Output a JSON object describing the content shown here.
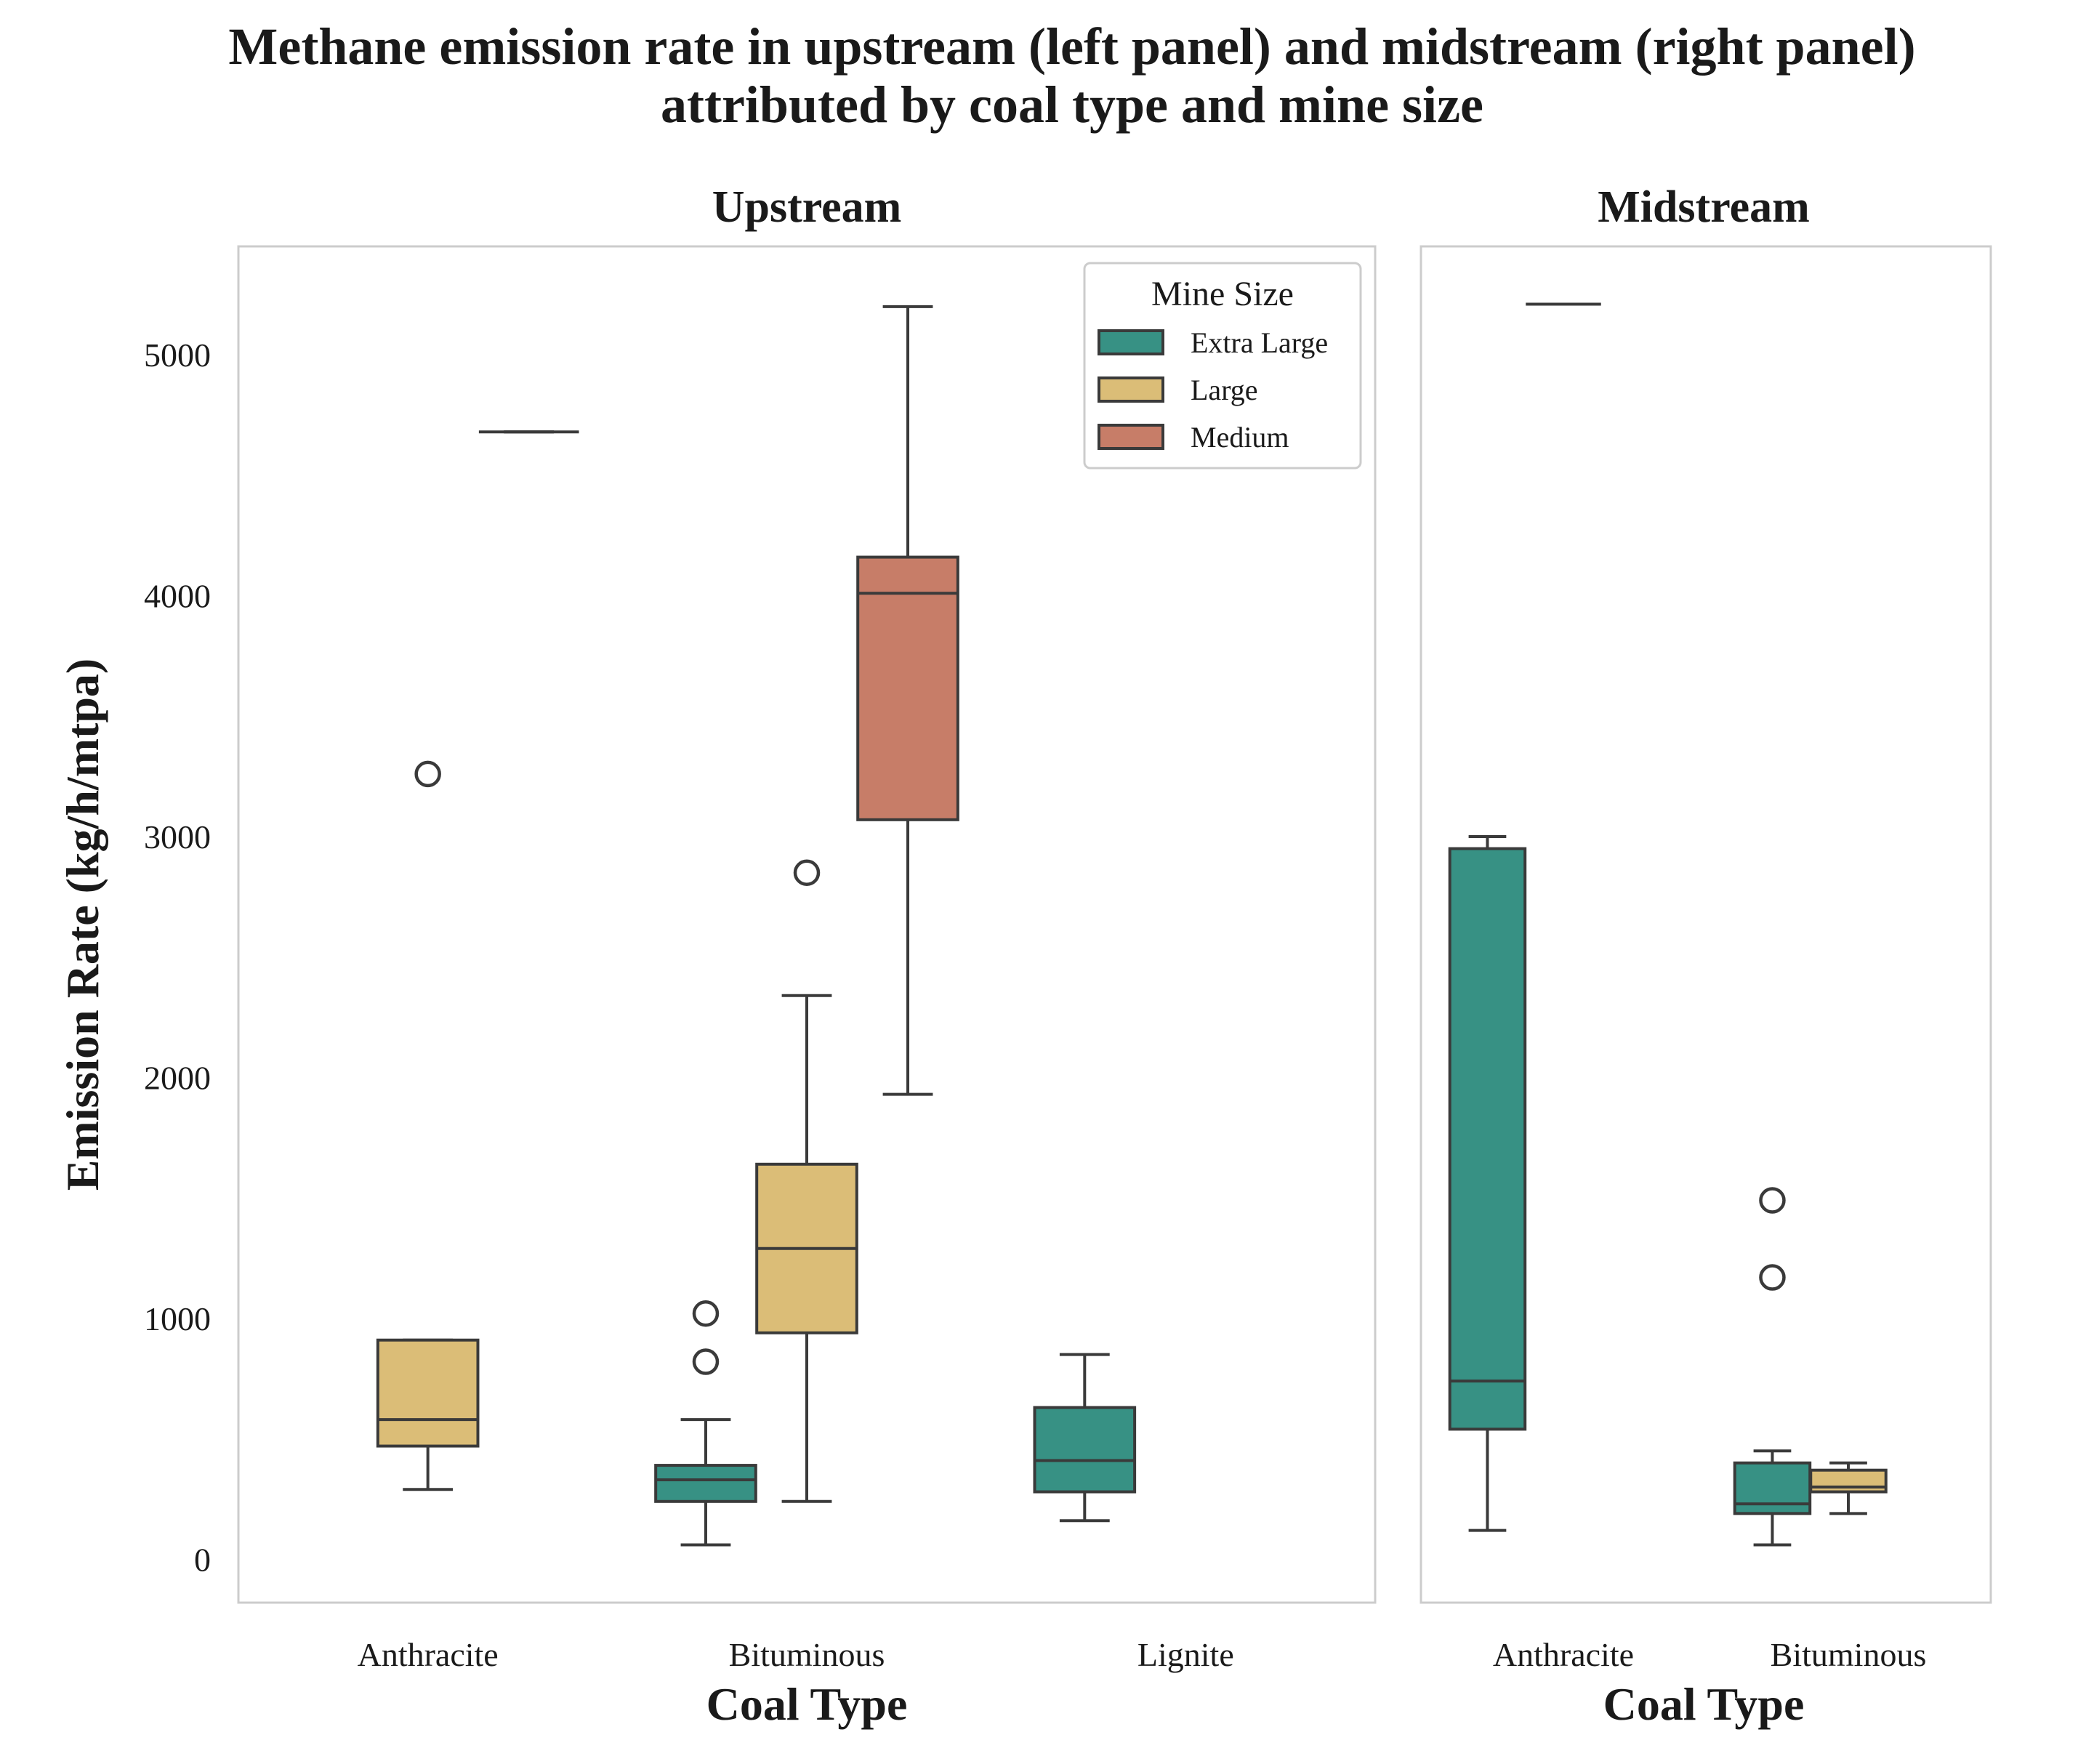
{
  "chart_data": {
    "type": "box",
    "title_lines": [
      "Methane emission rate in upstream (left panel) and midstream (right panel)",
      "attributed by coal type and mine size"
    ],
    "ylabel": "Emission Rate (kg/h/mtpa)",
    "ylim": [
      -180,
      5450
    ],
    "yticks": [
      0,
      1000,
      2000,
      3000,
      4000,
      5000
    ],
    "grid": false,
    "hue_order": [
      "Extra Large",
      "Large",
      "Medium"
    ],
    "colors": {
      "Extra Large": "#379184",
      "Large": "#dbbd77",
      "Medium": "#c77d68"
    },
    "legend": {
      "title": "Mine Size",
      "position": "top-right",
      "entries": [
        "Extra Large",
        "Large",
        "Medium"
      ]
    },
    "panels": [
      {
        "title": "Upstream",
        "xlabel": "Coal Type",
        "categories": [
          "Anthracite",
          "Bituminous",
          "Lignite"
        ],
        "boxes": [
          {
            "category": "Anthracite",
            "series": "Large",
            "whislo": 290,
            "q1": 470,
            "med": 580,
            "q3": 910,
            "whishi": 910,
            "fliers": [
              3260
            ]
          },
          {
            "category": "Anthracite",
            "series": "Medium",
            "whislo": 4680,
            "q1": 4680,
            "med": 4680,
            "q3": 4680,
            "whishi": 4680,
            "fliers": []
          },
          {
            "category": "Bituminous",
            "series": "Extra Large",
            "whislo": 60,
            "q1": 240,
            "med": 330,
            "q3": 390,
            "whishi": 580,
            "fliers": [
              820,
              1020
            ]
          },
          {
            "category": "Bituminous",
            "series": "Large",
            "whislo": 240,
            "q1": 940,
            "med": 1290,
            "q3": 1640,
            "whishi": 2340,
            "fliers": [
              2850
            ]
          },
          {
            "category": "Bituminous",
            "series": "Medium",
            "whislo": 1930,
            "q1": 3070,
            "med": 4010,
            "q3": 4160,
            "whishi": 5200,
            "fliers": []
          },
          {
            "category": "Lignite",
            "series": "Extra Large",
            "whislo": 160,
            "q1": 280,
            "med": 410,
            "q3": 630,
            "whishi": 850,
            "fliers": []
          }
        ]
      },
      {
        "title": "Midstream",
        "xlabel": "Coal Type",
        "categories": [
          "Anthracite",
          "Bituminous"
        ],
        "boxes": [
          {
            "category": "Anthracite",
            "series": "Extra Large",
            "whislo": 120,
            "q1": 540,
            "med": 740,
            "q3": 2950,
            "whishi": 3000,
            "fliers": []
          },
          {
            "category": "Anthracite",
            "series": "Large",
            "whislo": 5210,
            "q1": 5210,
            "med": 5210,
            "q3": 5210,
            "whishi": 5210,
            "fliers": []
          },
          {
            "category": "Bituminous",
            "series": "Extra Large",
            "whislo": 60,
            "q1": 190,
            "med": 230,
            "q3": 400,
            "whishi": 450,
            "fliers": [
              1170,
              1490
            ]
          },
          {
            "category": "Bituminous",
            "series": "Large",
            "whislo": 190,
            "q1": 280,
            "med": 300,
            "q3": 370,
            "whishi": 400,
            "fliers": []
          }
        ]
      }
    ]
  }
}
